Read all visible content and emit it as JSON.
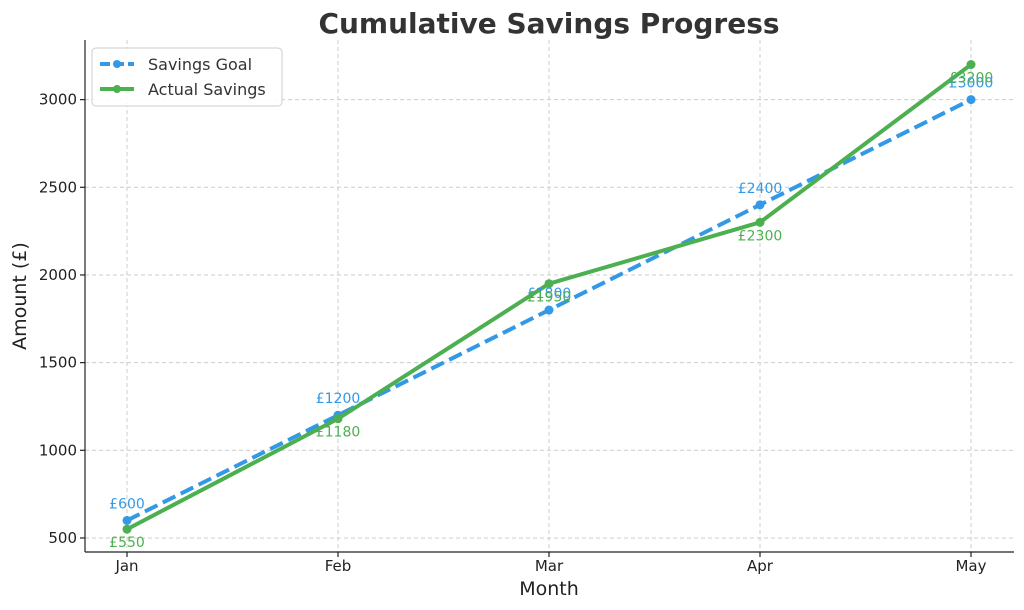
{
  "chart_data": {
    "type": "line",
    "title": "Cumulative Savings Progress",
    "xlabel": "Month",
    "ylabel": "Amount (£)",
    "categories": [
      "Jan",
      "Feb",
      "Mar",
      "Apr",
      "May"
    ],
    "ylim": [
      420,
      3340
    ],
    "yticks": [
      500,
      1000,
      1500,
      2000,
      2500,
      3000
    ],
    "grid": true,
    "legend_position": "top-left",
    "series": [
      {
        "name": "Savings Goal",
        "values": [
          600,
          1200,
          1800,
          2400,
          3000
        ],
        "labels": [
          "£600",
          "£1200",
          "£1800",
          "£2400",
          "£3000"
        ],
        "color": "#3399e6",
        "style": "dashed"
      },
      {
        "name": "Actual Savings",
        "values": [
          550,
          1180,
          1950,
          2300,
          3200
        ],
        "labels": [
          "£550",
          "£1180",
          "£1950",
          "£2300",
          "£3200"
        ],
        "color": "#4caf50",
        "style": "solid"
      }
    ]
  }
}
